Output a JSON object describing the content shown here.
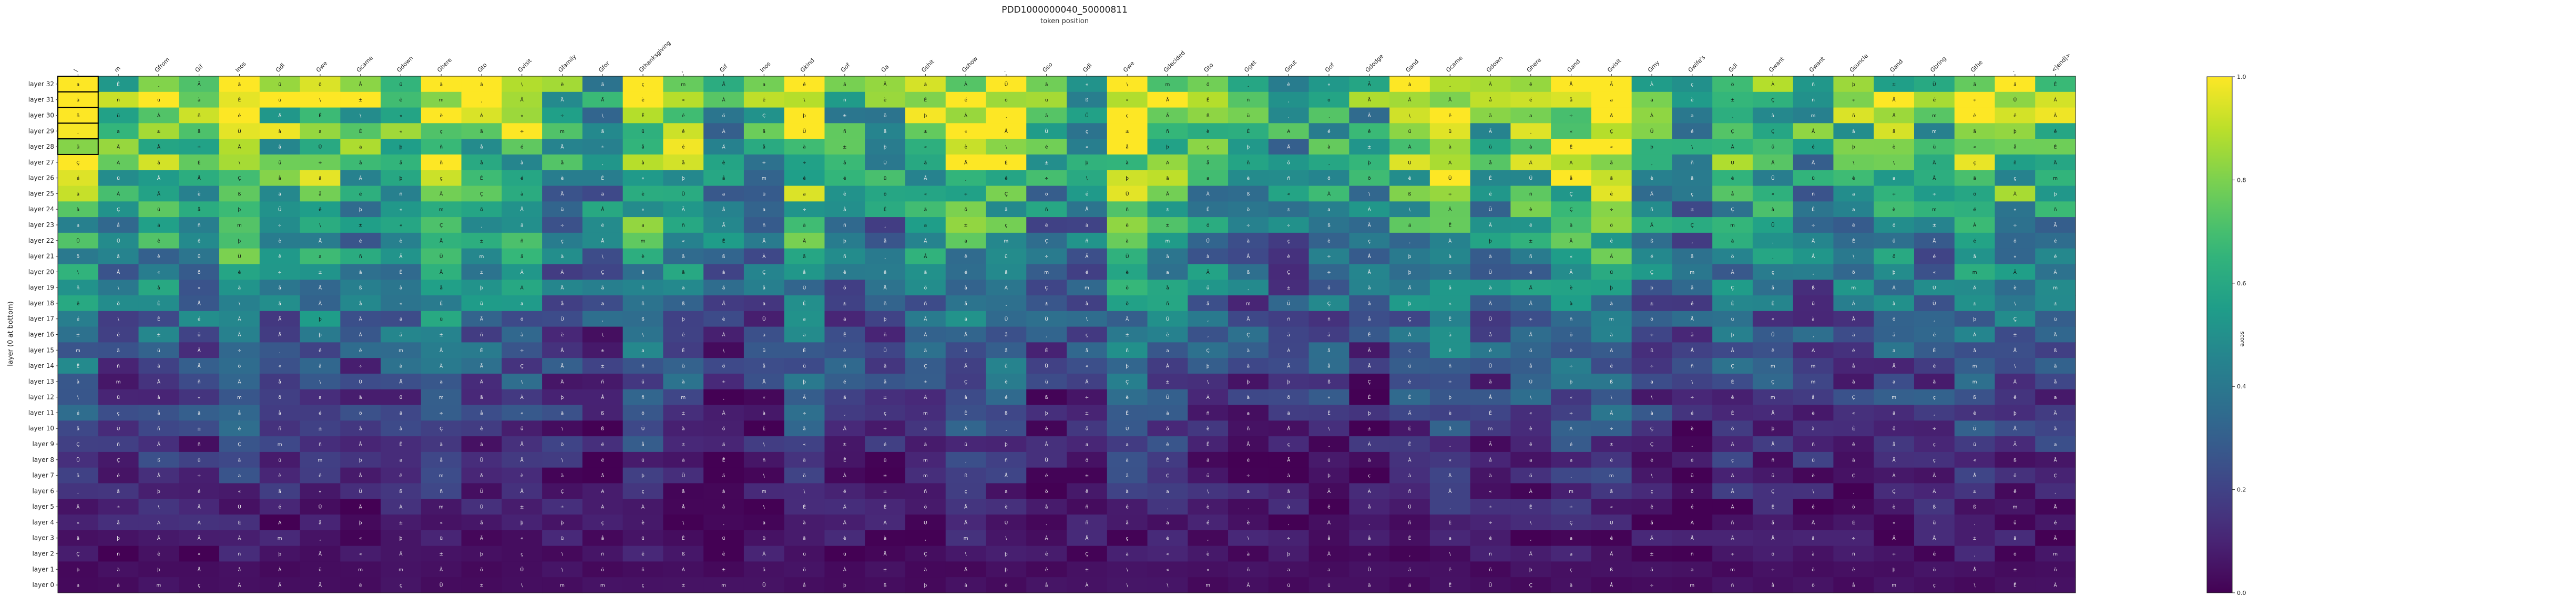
{
  "chart_data": {
    "type": "heatmap",
    "title": "PDD1000000040_50000811",
    "subtitle": "token position",
    "ylabel": "layer (0 at bottom)",
    "colorbar_label": "score",
    "colormap": "viridis",
    "vrange": [
      0.0,
      1.0
    ],
    "colorbar_ticks": [
      "0.0",
      "0.2",
      "0.4",
      "0.6",
      "0.8",
      "1.0"
    ],
    "tokens": [
      "\\",
      "m",
      "Gfrom",
      "Gif",
      "Inos",
      "Gdi",
      "Gwe",
      "Gcame",
      "Gdown",
      "Ghere",
      "Gto",
      "Gvisit",
      "Gfamily",
      "Gfor",
      "Gthanksgiving",
      ",",
      "Gif",
      "Inos",
      "Gkind",
      "Gof",
      "Ga",
      "Gshit",
      "Gshow",
      ".",
      "Gso",
      "Gdi",
      "Gwe",
      "Gdecided",
      "Gto",
      "Gget",
      "Gout",
      "Gof",
      "Gdodge",
      "Gand",
      "Gcame",
      "Gdown",
      "Ghere",
      "Gand",
      "Gvisit",
      "Gmy",
      "Gwife's",
      "Gdi",
      "Gwant",
      "Gwant",
      "Gsuncle",
      "Gand",
      "Gbring",
      "Gthe",
      ".",
      "<|end|>"
    ],
    "layers": [
      "layer 32",
      "layer 31",
      "layer 30",
      "layer 29",
      "layer 28",
      "layer 27",
      "layer 26",
      "layer 25",
      "layer 24",
      "layer 23",
      "layer 22",
      "layer 21",
      "layer 20",
      "layer 19",
      "layer 18",
      "layer 17",
      "layer 16",
      "layer 15",
      "layer 14",
      "layer 13",
      "layer 12",
      "layer 11",
      "layer 10",
      "layer 9",
      "layer 8",
      "layer 7",
      "layer 6",
      "layer 5",
      "layer 4",
      "layer 3",
      "layer 2",
      "layer 1",
      "layer 0"
    ],
    "cell_labels": [
      "\\",
      "m",
      "a",
      "Ä",
      "Å",
      "Ê",
      "Ã",
      "Ç",
      "À",
      "¸",
      "ä",
      "å",
      "ê",
      "ã",
      "ç",
      "à",
      "«",
      "±",
      "÷",
      "Å",
      "ü",
      "é",
      "ö",
      "Ü",
      "ß",
      "þ",
      "è",
      "ñ"
    ],
    "highlighted_rows": [
      "layer 32",
      "layer 31",
      "layer 30",
      "layer 29",
      "layer 28"
    ],
    "highlighted_columns": [
      "\\"
    ]
  }
}
